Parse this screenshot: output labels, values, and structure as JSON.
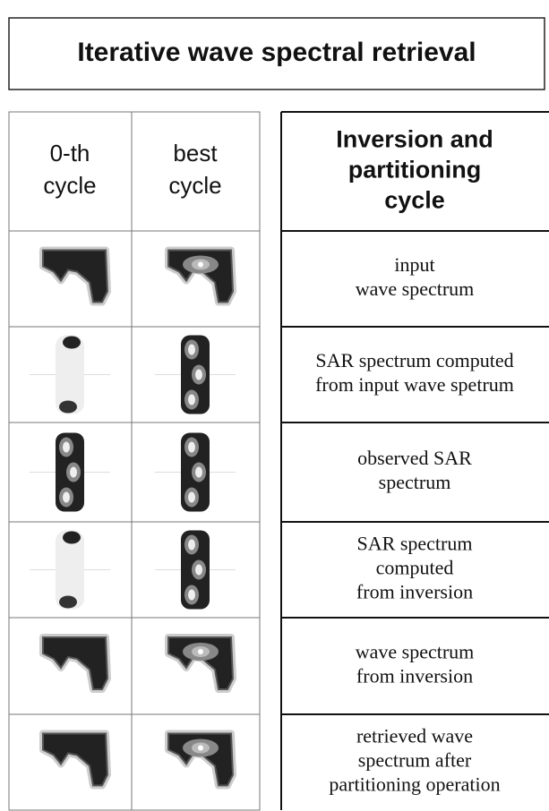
{
  "title": "Iterative wave spectral retrieval",
  "left_table": {
    "headers": [
      [
        "0-th",
        "cycle"
      ],
      [
        "best",
        "cycle"
      ]
    ]
  },
  "right_table": {
    "header": [
      "Inversion and",
      "partitioning",
      "cycle"
    ],
    "rows": [
      [
        "input",
        "wave spectrum"
      ],
      [
        "SAR spectrum computed",
        "from input wave spetrum"
      ],
      [
        "observed SAR",
        "spectrum"
      ],
      [
        "SAR spectrum",
        "computed",
        "from inversion"
      ],
      [
        "wave spectrum",
        "from inversion"
      ],
      [
        "retrieved wave",
        "spectrum after",
        "partitioning operation"
      ]
    ]
  }
}
